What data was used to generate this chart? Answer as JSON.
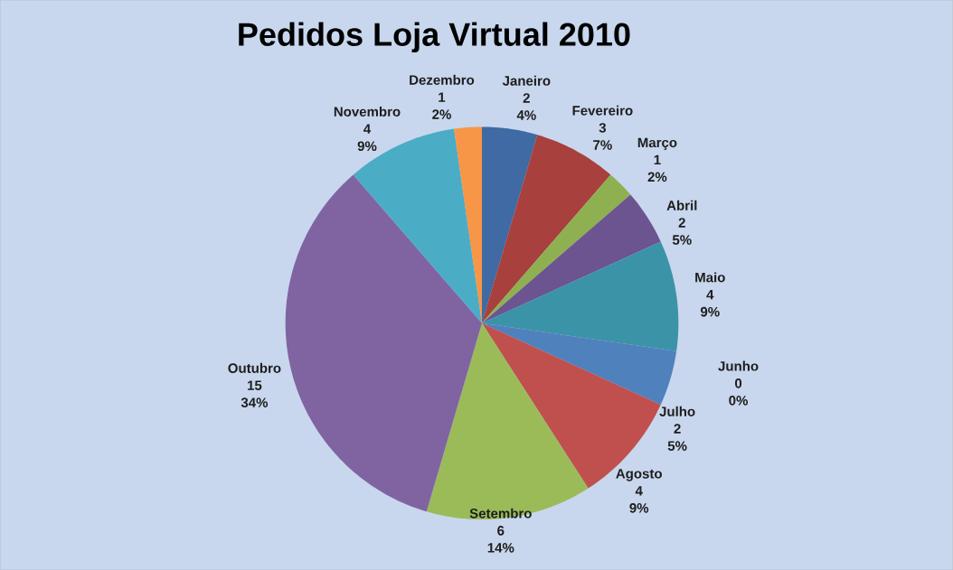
{
  "chart_data": {
    "type": "pie",
    "title": "Pedidos Loja Virtual 2010",
    "categories": [
      "Janeiro",
      "Fevereiro",
      "Março",
      "Abril",
      "Maio",
      "Junho",
      "Julho",
      "Agosto",
      "Setembro",
      "Outubro",
      "Novembro",
      "Dezembro"
    ],
    "values": [
      2,
      3,
      1,
      2,
      4,
      0,
      2,
      4,
      6,
      15,
      4,
      1
    ],
    "value_labels": [
      "2",
      "3",
      "1",
      "2",
      "4",
      "0",
      "2",
      "4",
      "6",
      "15",
      "4",
      "1"
    ],
    "annotations": [
      "4%",
      "7%",
      "2%",
      "5%",
      "9%",
      "0%",
      "5%",
      "9%",
      "14%",
      "34%",
      "9%",
      "2%"
    ],
    "colors": [
      "#3f6aa3",
      "#a8403d",
      "#8fb050",
      "#6b5490",
      "#3b93a8",
      "#d9782e",
      "#4f81bd",
      "#c0504d",
      "#9bbb59",
      "#8064a2",
      "#4bacc6",
      "#f79646"
    ]
  }
}
